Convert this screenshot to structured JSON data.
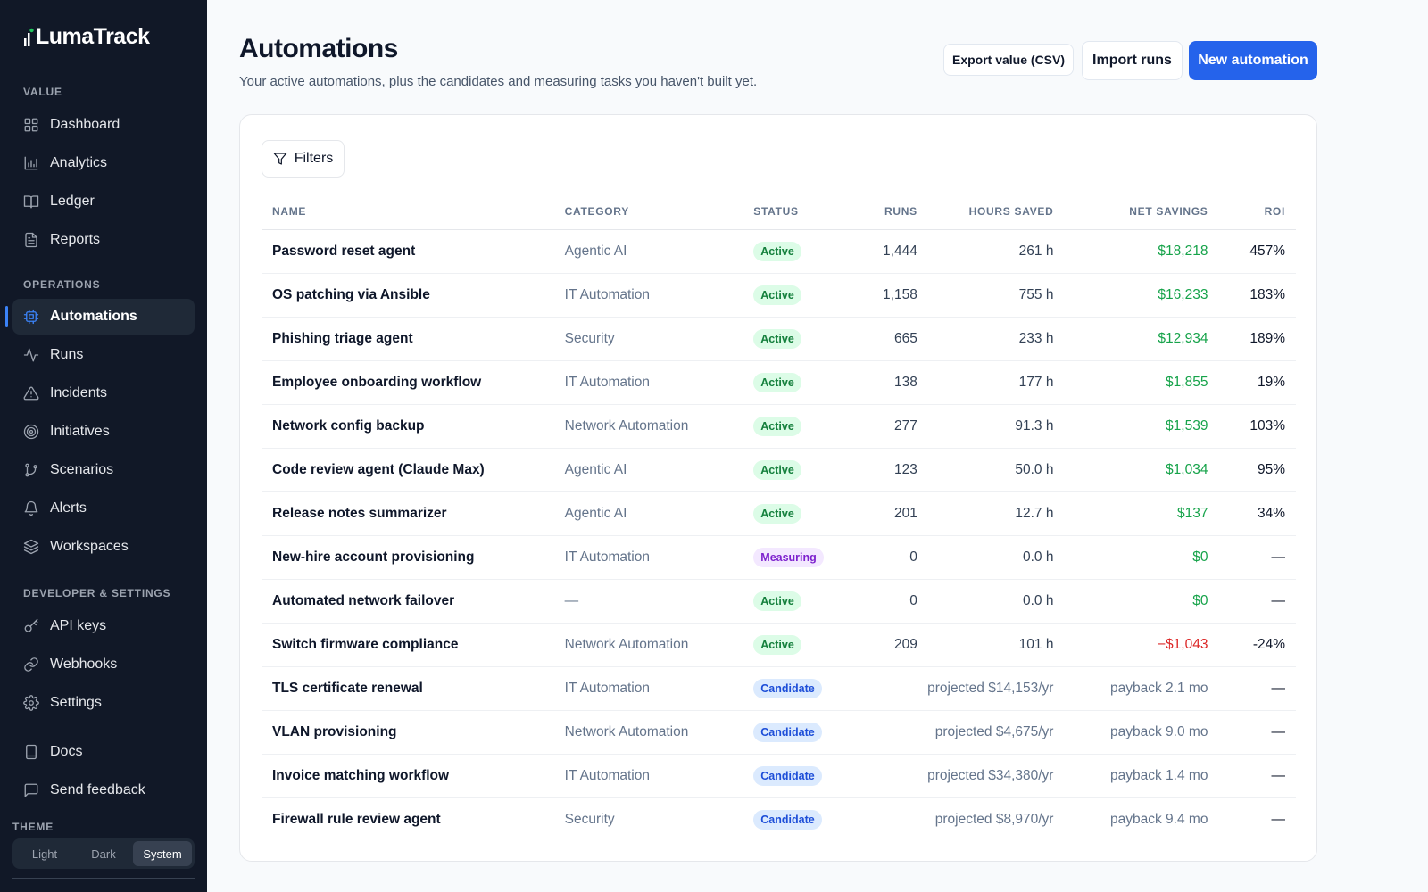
{
  "app": {
    "name": "LumaTrack"
  },
  "sidebar": {
    "sections": [
      {
        "label": "VALUE"
      },
      {
        "label": "OPERATIONS"
      },
      {
        "label": "DEVELOPER & SETTINGS"
      }
    ],
    "items": [
      {
        "label": "Dashboard",
        "icon": "grid-icon"
      },
      {
        "label": "Analytics",
        "icon": "bar-chart-icon"
      },
      {
        "label": "Ledger",
        "icon": "book-icon"
      },
      {
        "label": "Reports",
        "icon": "document-icon"
      },
      {
        "label": "Automations",
        "icon": "chip-icon",
        "active": true
      },
      {
        "label": "Runs",
        "icon": "activity-icon"
      },
      {
        "label": "Incidents",
        "icon": "warning-icon"
      },
      {
        "label": "Initiatives",
        "icon": "target-icon"
      },
      {
        "label": "Scenarios",
        "icon": "branch-icon"
      },
      {
        "label": "Alerts",
        "icon": "bell-icon"
      },
      {
        "label": "Workspaces",
        "icon": "layers-icon"
      },
      {
        "label": "API keys",
        "icon": "key-icon"
      },
      {
        "label": "Webhooks",
        "icon": "link-icon"
      },
      {
        "label": "Settings",
        "icon": "gear-icon"
      },
      {
        "label": "Docs",
        "icon": "doc-icon"
      },
      {
        "label": "Send feedback",
        "icon": "message-icon"
      }
    ],
    "theme": {
      "label": "THEME",
      "options": [
        "Light",
        "Dark",
        "System"
      ],
      "selected": "System"
    }
  },
  "header": {
    "title": "Automations",
    "subtitle": "Your active automations, plus the candidates and measuring tasks you haven't built yet.",
    "export_label": "Export value (CSV)",
    "import_label": "Import runs",
    "new_label": "New automation"
  },
  "filters_label": "Filters",
  "table": {
    "columns": [
      "NAME",
      "CATEGORY",
      "STATUS",
      "RUNS",
      "HOURS SAVED",
      "NET SAVINGS",
      "ROI"
    ],
    "rows": [
      {
        "name": "Password reset agent",
        "category": "Agentic AI",
        "status": "Active",
        "runs": "1,444",
        "hours": "261 h",
        "net": "$18,218",
        "roi": "457%"
      },
      {
        "name": "OS patching via Ansible",
        "category": "IT Automation",
        "status": "Active",
        "runs": "1,158",
        "hours": "755 h",
        "net": "$16,233",
        "roi": "183%"
      },
      {
        "name": "Phishing triage agent",
        "category": "Security",
        "status": "Active",
        "runs": "665",
        "hours": "233 h",
        "net": "$12,934",
        "roi": "189%"
      },
      {
        "name": "Employee onboarding workflow",
        "category": "IT Automation",
        "status": "Active",
        "runs": "138",
        "hours": "177 h",
        "net": "$1,855",
        "roi": "19%"
      },
      {
        "name": "Network config backup",
        "category": "Network Automation",
        "status": "Active",
        "runs": "277",
        "hours": "91.3 h",
        "net": "$1,539",
        "roi": "103%"
      },
      {
        "name": "Code review agent (Claude Max)",
        "category": "Agentic AI",
        "status": "Active",
        "runs": "123",
        "hours": "50.0 h",
        "net": "$1,034",
        "roi": "95%"
      },
      {
        "name": "Release notes summarizer",
        "category": "Agentic AI",
        "status": "Active",
        "runs": "201",
        "hours": "12.7 h",
        "net": "$137",
        "roi": "34%"
      },
      {
        "name": "New-hire account provisioning",
        "category": "IT Automation",
        "status": "Measuring",
        "runs": "0",
        "hours": "0.0 h",
        "net": "$0",
        "roi": "—"
      },
      {
        "name": "Automated network failover",
        "category": "—",
        "status": "Active",
        "runs": "0",
        "hours": "0.0 h",
        "net": "$0",
        "roi": "—"
      },
      {
        "name": "Switch firmware compliance",
        "category": "Network Automation",
        "status": "Active",
        "runs": "209",
        "hours": "101 h",
        "net": "−$1,043",
        "roi": "-24%"
      },
      {
        "name": "TLS certificate renewal",
        "category": "IT Automation",
        "status": "Candidate",
        "projected": "projected $14,153/yr",
        "net": "payback 2.1 mo",
        "roi": "—"
      },
      {
        "name": "VLAN provisioning",
        "category": "Network Automation",
        "status": "Candidate",
        "projected": "projected $4,675/yr",
        "net": "payback 9.0 mo",
        "roi": "—"
      },
      {
        "name": "Invoice matching workflow",
        "category": "IT Automation",
        "status": "Candidate",
        "projected": "projected $34,380/yr",
        "net": "payback 1.4 mo",
        "roi": "—"
      },
      {
        "name": "Firewall rule review agent",
        "category": "Security",
        "status": "Candidate",
        "projected": "projected $8,970/yr",
        "net": "payback 9.4 mo",
        "roi": "—"
      }
    ]
  },
  "colors": {
    "primary": "#2563eb",
    "sidebar_bg": "#111827",
    "positive": "#16a34a",
    "negative": "#dc2626"
  }
}
